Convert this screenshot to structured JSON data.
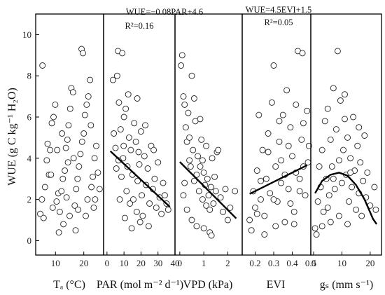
{
  "chart_data": {
    "type": "scatter",
    "ylabel": "WUE (g C kg⁻¹ H₂O)",
    "ylim": [
      -0.7,
      11
    ],
    "yticks": [
      0,
      2,
      4,
      6,
      8,
      10
    ],
    "grid": false,
    "panels": [
      {
        "xlabel": "Tₐ (°C)",
        "xlim": [
          3,
          27
        ],
        "xticks": [
          10,
          20
        ],
        "equation": "",
        "r2": "",
        "points": [
          [
            5.4,
            8.5
          ],
          [
            4.6,
            1.3
          ],
          [
            5.2,
            2.0
          ],
          [
            5.8,
            1.1
          ],
          [
            6.3,
            2.6
          ],
          [
            6.9,
            3.9
          ],
          [
            7.7,
            3.2
          ],
          [
            8.1,
            4.4
          ],
          [
            8.7,
            5.7
          ],
          [
            9.3,
            6.0
          ],
          [
            9.9,
            6.6
          ],
          [
            10.4,
            1.9
          ],
          [
            11.0,
            2.3
          ],
          [
            11.5,
            1.4
          ],
          [
            12.1,
            2.4
          ],
          [
            12.6,
            3.0
          ],
          [
            13.3,
            3.4
          ],
          [
            13.7,
            4.5
          ],
          [
            14.2,
            4.9
          ],
          [
            14.6,
            5.6
          ],
          [
            15.2,
            6.4
          ],
          [
            15.6,
            7.4
          ],
          [
            16.2,
            7.2
          ],
          [
            16.8,
            1.7
          ],
          [
            17.3,
            2.5
          ],
          [
            17.8,
            3.0
          ],
          [
            18.3,
            3.6
          ],
          [
            18.8,
            4.2
          ],
          [
            19.4,
            4.8
          ],
          [
            20.0,
            5.2
          ],
          [
            20.4,
            6.1
          ],
          [
            21.0,
            6.6
          ],
          [
            21.6,
            7.0
          ],
          [
            22.2,
            7.8
          ],
          [
            19.2,
            9.3
          ],
          [
            19.7,
            9.1
          ],
          [
            22.7,
            2.6
          ],
          [
            23.2,
            3.1
          ],
          [
            23.8,
            4.0
          ],
          [
            24.4,
            4.6
          ],
          [
            25.0,
            3.3
          ],
          [
            25.6,
            2.5
          ],
          [
            11.2,
            0.4
          ],
          [
            12.8,
            0.8
          ],
          [
            15.0,
            1.2
          ],
          [
            17.1,
            0.5
          ],
          [
            9.0,
            1.6
          ],
          [
            13.9,
            2.1
          ],
          [
            18.0,
            1.5
          ],
          [
            21.3,
            2.0
          ],
          [
            20.7,
            1.2
          ],
          [
            24.0,
            2.0
          ],
          [
            16.4,
            4.0
          ],
          [
            22.5,
            5.6
          ],
          [
            14.4,
            3.8
          ],
          [
            12.3,
            5.2
          ],
          [
            10.6,
            4.4
          ],
          [
            8.4,
            3.2
          ],
          [
            7.2,
            4.7
          ],
          [
            23.5,
            1.6
          ]
        ]
      },
      {
        "xlabel": "PAR (mol m⁻² d⁻¹)",
        "xlim": [
          -2,
          40
        ],
        "xticks": [
          0,
          10,
          20,
          30,
          40
        ],
        "equation": "WUE=−0.08PAR+4.6",
        "r2": "R²=0.16",
        "fit": {
          "kind": "linear",
          "x": [
            2,
            37
          ],
          "y": [
            4.34,
            1.64
          ]
        },
        "points": [
          [
            3.5,
            7.8
          ],
          [
            4.0,
            5.2
          ],
          [
            5.0,
            4.5
          ],
          [
            5.5,
            3.5
          ],
          [
            6.0,
            8.0
          ],
          [
            6.5,
            9.2
          ],
          [
            7.0,
            6.7
          ],
          [
            8.0,
            5.4
          ],
          [
            8.5,
            3.1
          ],
          [
            9.0,
            9.1
          ],
          [
            9.5,
            4.0
          ],
          [
            10.0,
            6.0
          ],
          [
            11.0,
            6.4
          ],
          [
            11.5,
            2.4
          ],
          [
            12.0,
            3.6
          ],
          [
            13.0,
            5.0
          ],
          [
            13.5,
            1.8
          ],
          [
            14.0,
            4.4
          ],
          [
            15.0,
            3.2
          ],
          [
            15.5,
            2.0
          ],
          [
            16.0,
            5.7
          ],
          [
            17.0,
            4.8
          ],
          [
            17.5,
            1.4
          ],
          [
            18.0,
            2.9
          ],
          [
            19.0,
            3.7
          ],
          [
            20.0,
            5.3
          ],
          [
            20.5,
            2.2
          ],
          [
            21.0,
            1.2
          ],
          [
            22.0,
            4.1
          ],
          [
            23.0,
            2.7
          ],
          [
            24.0,
            3.5
          ],
          [
            25.0,
            1.8
          ],
          [
            26.0,
            4.6
          ],
          [
            27.0,
            2.5
          ],
          [
            28.0,
            3.0
          ],
          [
            29.0,
            1.6
          ],
          [
            30.0,
            3.8
          ],
          [
            31.0,
            2.1
          ],
          [
            32.0,
            1.3
          ],
          [
            33.0,
            2.8
          ],
          [
            34.0,
            2.2
          ],
          [
            35.0,
            1.8
          ],
          [
            36.0,
            1.5
          ],
          [
            24.5,
            0.7
          ],
          [
            19.5,
            0.9
          ],
          [
            14.5,
            0.6
          ],
          [
            10.5,
            1.1
          ],
          [
            7.5,
            2.0
          ],
          [
            6.8,
            3.9
          ],
          [
            12.5,
            7.1
          ],
          [
            17.8,
            6.9
          ],
          [
            22.5,
            5.6
          ],
          [
            27.5,
            4.4
          ],
          [
            9.8,
            4.6
          ],
          [
            18.6,
            4.3
          ]
        ]
      },
      {
        "xlabel": "VPD (kPa)",
        "xlim": [
          -0.2,
          2.6
        ],
        "xticks": [
          0,
          1,
          2
        ],
        "equation": "",
        "r2": "",
        "fit": {
          "kind": "linear",
          "x": [
            0.0,
            2.35
          ],
          "y": [
            3.82,
            1.08
          ]
        },
        "points": [
          [
            0.05,
            8.5
          ],
          [
            0.1,
            9.0
          ],
          [
            0.15,
            7.0
          ],
          [
            0.2,
            6.6
          ],
          [
            0.25,
            5.5
          ],
          [
            0.3,
            4.8
          ],
          [
            0.35,
            6.2
          ],
          [
            0.4,
            5.0
          ],
          [
            0.45,
            3.6
          ],
          [
            0.5,
            8.0
          ],
          [
            0.55,
            4.4
          ],
          [
            0.6,
            2.9
          ],
          [
            0.65,
            5.8
          ],
          [
            0.7,
            3.2
          ],
          [
            0.75,
            4.1
          ],
          [
            0.8,
            2.4
          ],
          [
            0.85,
            3.6
          ],
          [
            0.9,
            4.9
          ],
          [
            0.95,
            2.0
          ],
          [
            1.0,
            3.3
          ],
          [
            1.05,
            2.7
          ],
          [
            1.1,
            1.7
          ],
          [
            1.15,
            3.0
          ],
          [
            1.2,
            2.2
          ],
          [
            1.25,
            1.5
          ],
          [
            1.3,
            2.6
          ],
          [
            1.35,
            4.0
          ],
          [
            1.4,
            1.8
          ],
          [
            1.5,
            2.4
          ],
          [
            1.55,
            4.3
          ],
          [
            1.6,
            4.4
          ],
          [
            1.7,
            2.1
          ],
          [
            1.8,
            1.4
          ],
          [
            1.9,
            2.5
          ],
          [
            2.0,
            1.0
          ],
          [
            2.1,
            1.6
          ],
          [
            2.3,
            2.4
          ],
          [
            0.3,
            1.5
          ],
          [
            0.5,
            1.0
          ],
          [
            0.7,
            0.7
          ],
          [
            1.0,
            0.6
          ],
          [
            1.25,
            0.4
          ],
          [
            1.32,
            0.25
          ],
          [
            0.2,
            2.8
          ],
          [
            0.4,
            3.9
          ],
          [
            0.6,
            6.9
          ],
          [
            0.85,
            5.9
          ],
          [
            1.1,
            4.6
          ],
          [
            0.15,
            2.2
          ],
          [
            0.95,
            3.9
          ],
          [
            1.45,
            3.1
          ]
        ]
      },
      {
        "xlabel": "EVI",
        "xlim": [
          0.13,
          0.5
        ],
        "xticks": [
          0.2,
          0.3,
          0.4,
          0.5
        ],
        "xtick_labels": [
          "0.2",
          "0.3",
          "0.4",
          "0.5"
        ],
        "equation": "WUE=4.5EVI+1.5",
        "r2": "R²=0.05",
        "fit": {
          "kind": "linear",
          "x": [
            0.17,
            0.48
          ],
          "y": [
            2.27,
            3.66
          ]
        },
        "points": [
          [
            0.17,
            1.0
          ],
          [
            0.18,
            0.5
          ],
          [
            0.19,
            2.4
          ],
          [
            0.2,
            1.6
          ],
          [
            0.21,
            3.4
          ],
          [
            0.22,
            6.1
          ],
          [
            0.23,
            2.0
          ],
          [
            0.24,
            4.4
          ],
          [
            0.25,
            1.2
          ],
          [
            0.26,
            3.0
          ],
          [
            0.27,
            5.2
          ],
          [
            0.28,
            2.3
          ],
          [
            0.29,
            6.7
          ],
          [
            0.3,
            8.5
          ],
          [
            0.31,
            3.6
          ],
          [
            0.32,
            1.9
          ],
          [
            0.33,
            4.8
          ],
          [
            0.34,
            2.8
          ],
          [
            0.35,
            6.1
          ],
          [
            0.36,
            3.2
          ],
          [
            0.37,
            7.3
          ],
          [
            0.38,
            2.5
          ],
          [
            0.39,
            5.5
          ],
          [
            0.4,
            4.1
          ],
          [
            0.41,
            1.4
          ],
          [
            0.42,
            6.6
          ],
          [
            0.43,
            9.2
          ],
          [
            0.44,
            3.0
          ],
          [
            0.45,
            4.9
          ],
          [
            0.455,
            9.1
          ],
          [
            0.46,
            5.7
          ],
          [
            0.47,
            2.2
          ],
          [
            0.48,
            6.3
          ],
          [
            0.485,
            3.8
          ],
          [
            0.49,
            4.6
          ],
          [
            0.25,
            0.3
          ],
          [
            0.31,
            0.7
          ],
          [
            0.36,
            0.9
          ],
          [
            0.41,
            0.8
          ],
          [
            0.3,
            2.0
          ],
          [
            0.34,
            3.9
          ],
          [
            0.39,
            1.8
          ],
          [
            0.44,
            2.4
          ],
          [
            0.23,
            2.9
          ],
          [
            0.27,
            4.3
          ],
          [
            0.33,
            5.8
          ],
          [
            0.38,
            4.6
          ],
          [
            0.42,
            3.3
          ],
          [
            0.46,
            3.6
          ],
          [
            0.21,
            1.3
          ]
        ]
      },
      {
        "xlabel": "gₛ (mm s⁻¹)",
        "xlim": [
          -1,
          24
        ],
        "xticks": [
          0,
          10,
          20
        ],
        "equation": "",
        "r2": "",
        "fit": {
          "kind": "curve",
          "x": [
            0.5,
            3,
            6,
            9,
            12,
            15,
            18,
            21,
            22.3
          ],
          "y": [
            2.3,
            2.9,
            3.2,
            3.3,
            3.15,
            2.7,
            2.0,
            1.05,
            0.8
          ]
        },
        "points": [
          [
            0.5,
            0.6
          ],
          [
            1.0,
            0.3
          ],
          [
            1.5,
            1.9
          ],
          [
            2.0,
            3.6
          ],
          [
            2.5,
            2.6
          ],
          [
            3.0,
            4.4
          ],
          [
            3.5,
            1.4
          ],
          [
            4.0,
            5.8
          ],
          [
            4.5,
            3.0
          ],
          [
            5.0,
            6.4
          ],
          [
            5.5,
            2.2
          ],
          [
            6.0,
            4.9
          ],
          [
            6.5,
            3.6
          ],
          [
            7.0,
            7.4
          ],
          [
            7.5,
            2.5
          ],
          [
            8.0,
            5.4
          ],
          [
            8.5,
            9.2
          ],
          [
            9.0,
            3.9
          ],
          [
            9.5,
            6.8
          ],
          [
            10.0,
            2.8
          ],
          [
            10.5,
            4.4
          ],
          [
            11.0,
            7.1
          ],
          [
            11.5,
            3.2
          ],
          [
            12.0,
            5.0
          ],
          [
            12.5,
            1.9
          ],
          [
            13.0,
            4.0
          ],
          [
            13.5,
            2.6
          ],
          [
            14.0,
            6.0
          ],
          [
            14.5,
            3.4
          ],
          [
            15.0,
            1.5
          ],
          [
            15.5,
            4.6
          ],
          [
            16.0,
            2.3
          ],
          [
            16.5,
            3.8
          ],
          [
            17.0,
            1.2
          ],
          [
            17.5,
            2.9
          ],
          [
            18.0,
            5.1
          ],
          [
            18.5,
            2.1
          ],
          [
            19.0,
            3.3
          ],
          [
            20.0,
            1.7
          ],
          [
            21.5,
            2.6
          ],
          [
            22.0,
            1.5
          ],
          [
            3.0,
            0.7
          ],
          [
            6.0,
            0.9
          ],
          [
            9.0,
            1.2
          ],
          [
            12.0,
            0.8
          ],
          [
            5.0,
            1.6
          ],
          [
            11.0,
            5.9
          ],
          [
            16.0,
            5.5
          ],
          [
            7.0,
            3.0
          ],
          [
            13.0,
            3.3
          ]
        ]
      }
    ]
  }
}
